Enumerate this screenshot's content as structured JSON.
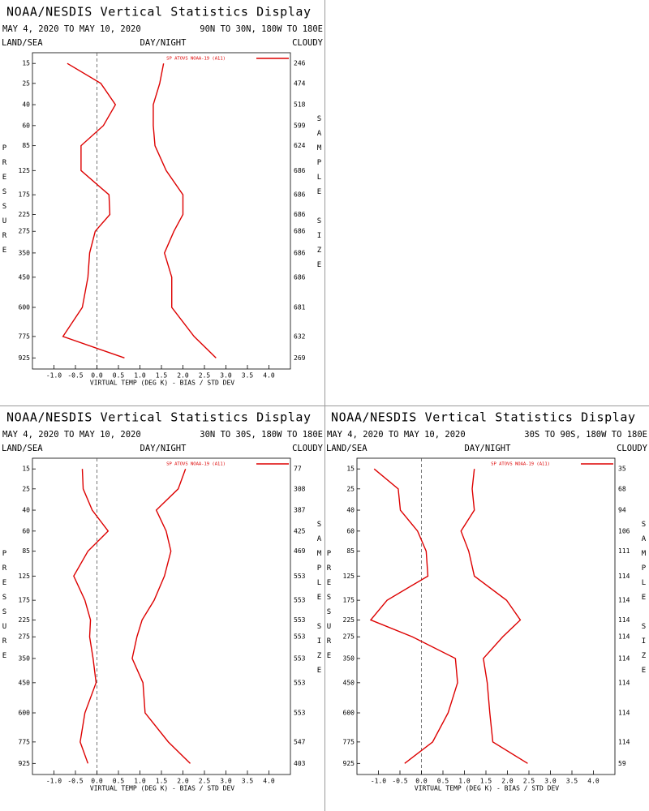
{
  "chart_data": [
    {
      "type": "profile",
      "title": "NOAA/NESDIS Vertical Statistics Display",
      "date_range": "MAY 4, 2020 TO MAY 10, 2020",
      "region": "90N TO 30N, 180W TO 180E",
      "land_sea_label": "LAND/SEA",
      "day_night_label": "DAY/NIGHT",
      "cloud_label": "CLOUDY",
      "y_label": "PRESSURE",
      "y2_label": "SAMPLE SIZE",
      "x_label": "VIRTUAL TEMP (DEG K) - BIAS / STD DEV",
      "xlim": [
        -1.5,
        4.5
      ],
      "xticks": [
        {
          "value": -1.0,
          "label": "-1.0"
        },
        {
          "value": -0.5,
          "label": "-0.5"
        },
        {
          "value": 0.0,
          "label": "0.0"
        },
        {
          "value": 0.5,
          "label": "0.5"
        },
        {
          "value": 1.0,
          "label": "1.0"
        },
        {
          "value": 1.5,
          "label": "1.5"
        },
        {
          "value": 2.0,
          "label": "2.0"
        },
        {
          "value": 2.5,
          "label": "2.5"
        },
        {
          "value": 3.0,
          "label": "3.0"
        },
        {
          "value": 3.5,
          "label": "3.5"
        },
        {
          "value": 4.0,
          "label": "4.0"
        }
      ],
      "ylim": [
        11,
        1010
      ],
      "y": [
        15,
        25,
        40,
        60,
        85,
        125,
        175,
        225,
        275,
        350,
        450,
        600,
        775,
        925
      ],
      "sample_size": [
        246,
        474,
        518,
        599,
        624,
        686,
        686,
        686,
        686,
        686,
        686,
        681,
        632,
        269
      ],
      "series": [
        {
          "name": "SP ATOVS NOAA-19 (A11)",
          "color": "#dd0000",
          "bias": [
            -0.69,
            0.09,
            0.43,
            0.15,
            -0.37,
            -0.37,
            0.28,
            0.3,
            -0.04,
            -0.17,
            -0.21,
            -0.34,
            -0.79,
            0.64
          ],
          "std_dev": [
            1.55,
            1.46,
            1.31,
            1.31,
            1.35,
            1.61,
            2.0,
            2.0,
            1.79,
            1.57,
            1.74,
            1.74,
            2.26,
            2.77
          ]
        }
      ]
    },
    {
      "type": "profile",
      "title": "NOAA/NESDIS Vertical Statistics Display",
      "date_range": "MAY 4, 2020 TO MAY 10, 2020",
      "region": "30N TO 30S, 180W TO 180E",
      "land_sea_label": "LAND/SEA",
      "day_night_label": "DAY/NIGHT",
      "cloud_label": "CLOUDY",
      "y_label": "PRESSURE",
      "y2_label": "SAMPLE SIZE",
      "x_label": "VIRTUAL TEMP (DEG K) - BIAS / STD DEV",
      "xlim": [
        -1.5,
        4.5
      ],
      "xticks": [
        {
          "value": -1.0,
          "label": "-1.0"
        },
        {
          "value": -0.5,
          "label": "-0.5"
        },
        {
          "value": 0.0,
          "label": "0.0"
        },
        {
          "value": 0.5,
          "label": "0.5"
        },
        {
          "value": 1.0,
          "label": "1.0"
        },
        {
          "value": 1.5,
          "label": "1.5"
        },
        {
          "value": 2.0,
          "label": "2.0"
        },
        {
          "value": 2.5,
          "label": "2.5"
        },
        {
          "value": 3.0,
          "label": "3.0"
        },
        {
          "value": 3.5,
          "label": "3.5"
        },
        {
          "value": 4.0,
          "label": "4.0"
        }
      ],
      "ylim": [
        11,
        1010
      ],
      "y": [
        15,
        25,
        40,
        60,
        85,
        125,
        175,
        225,
        275,
        350,
        450,
        600,
        775,
        925
      ],
      "sample_size": [
        77,
        308,
        387,
        425,
        469,
        553,
        553,
        553,
        553,
        553,
        553,
        553,
        547,
        403
      ],
      "series": [
        {
          "name": "SP ATOVS NOAA-19 (A11)",
          "color": "#dd0000",
          "bias": [
            -0.34,
            -0.32,
            -0.11,
            0.26,
            -0.21,
            -0.54,
            -0.28,
            -0.15,
            -0.17,
            -0.09,
            -0.02,
            -0.28,
            -0.39,
            -0.21
          ],
          "std_dev": [
            2.06,
            1.89,
            1.38,
            1.61,
            1.72,
            1.57,
            1.33,
            1.05,
            0.93,
            0.82,
            1.07,
            1.12,
            1.66,
            2.17
          ]
        }
      ]
    },
    {
      "type": "profile",
      "title": "NOAA/NESDIS Vertical Statistics Display",
      "date_range": "MAY 4, 2020 TO MAY 10, 2020",
      "region": "30S TO 90S, 180W TO 180E",
      "land_sea_label": "LAND/SEA",
      "day_night_label": "DAY/NIGHT",
      "cloud_label": "CLOUDY",
      "y_label": "PRESSURE",
      "y2_label": "SAMPLE SIZE",
      "x_label": "VIRTUAL TEMP (DEG K) - BIAS / STD DEV",
      "xlim": [
        -1.5,
        4.5
      ],
      "xticks": [
        {
          "value": -1.0,
          "label": "-1.0"
        },
        {
          "value": -0.5,
          "label": "-0.5"
        },
        {
          "value": 0.0,
          "label": "0.0"
        },
        {
          "value": 0.5,
          "label": "0.5"
        },
        {
          "value": 1.0,
          "label": "1.0"
        },
        {
          "value": 1.5,
          "label": "1.5"
        },
        {
          "value": 2.0,
          "label": "2.0"
        },
        {
          "value": 2.5,
          "label": "2.5"
        },
        {
          "value": 3.0,
          "label": "3.0"
        },
        {
          "value": 3.5,
          "label": "3.5"
        },
        {
          "value": 4.0,
          "label": "4.0"
        }
      ],
      "ylim": [
        11,
        1010
      ],
      "y": [
        15,
        25,
        40,
        60,
        85,
        125,
        175,
        225,
        275,
        350,
        450,
        600,
        775,
        925
      ],
      "sample_size": [
        35,
        68,
        94,
        106,
        111,
        114,
        114,
        114,
        114,
        114,
        114,
        114,
        114,
        59
      ],
      "series": [
        {
          "name": "SP ATOVS NOAA-19 (A11)",
          "color": "#dd0000",
          "bias": [
            -1.1,
            -0.54,
            -0.49,
            -0.09,
            0.11,
            0.15,
            -0.8,
            -1.18,
            -0.21,
            0.79,
            0.84,
            0.62,
            0.26,
            -0.39
          ],
          "std_dev": [
            1.23,
            1.18,
            1.23,
            0.92,
            1.1,
            1.23,
            1.98,
            2.3,
            1.89,
            1.44,
            1.53,
            1.59,
            1.66,
            2.47
          ]
        }
      ]
    }
  ]
}
